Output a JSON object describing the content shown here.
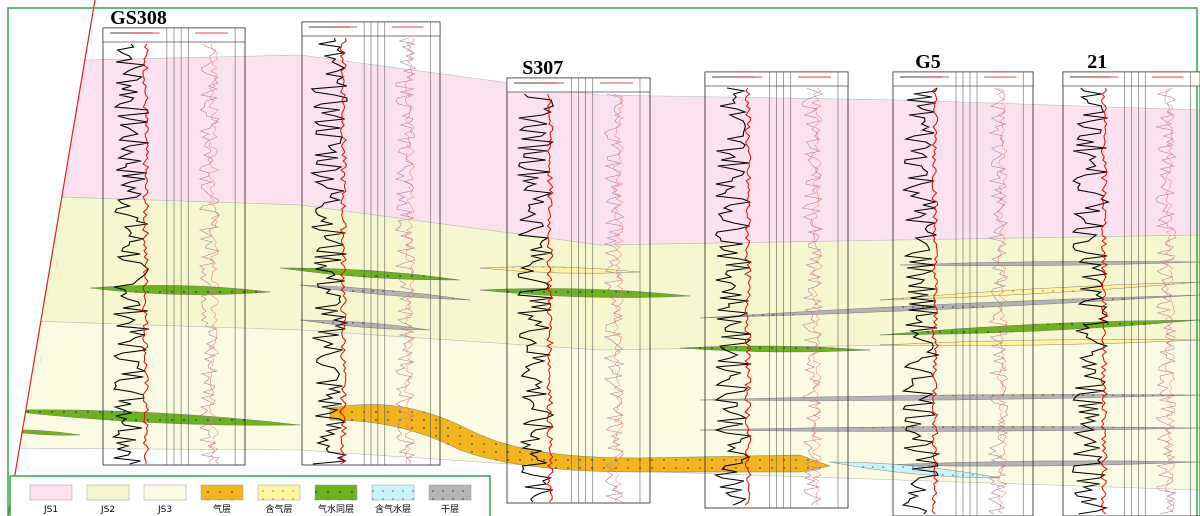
{
  "wells": [
    {
      "name": "GS308"
    },
    {
      "name": "S307"
    },
    {
      "name": "G5"
    },
    {
      "name": "21"
    }
  ],
  "legend": [
    {
      "label": "JS1"
    },
    {
      "label": "JS2"
    },
    {
      "label": "JS3"
    },
    {
      "label": "气层"
    },
    {
      "label": "含气层"
    },
    {
      "label": "气水同层"
    },
    {
      "label": "含气水层"
    },
    {
      "label": "干层"
    }
  ]
}
